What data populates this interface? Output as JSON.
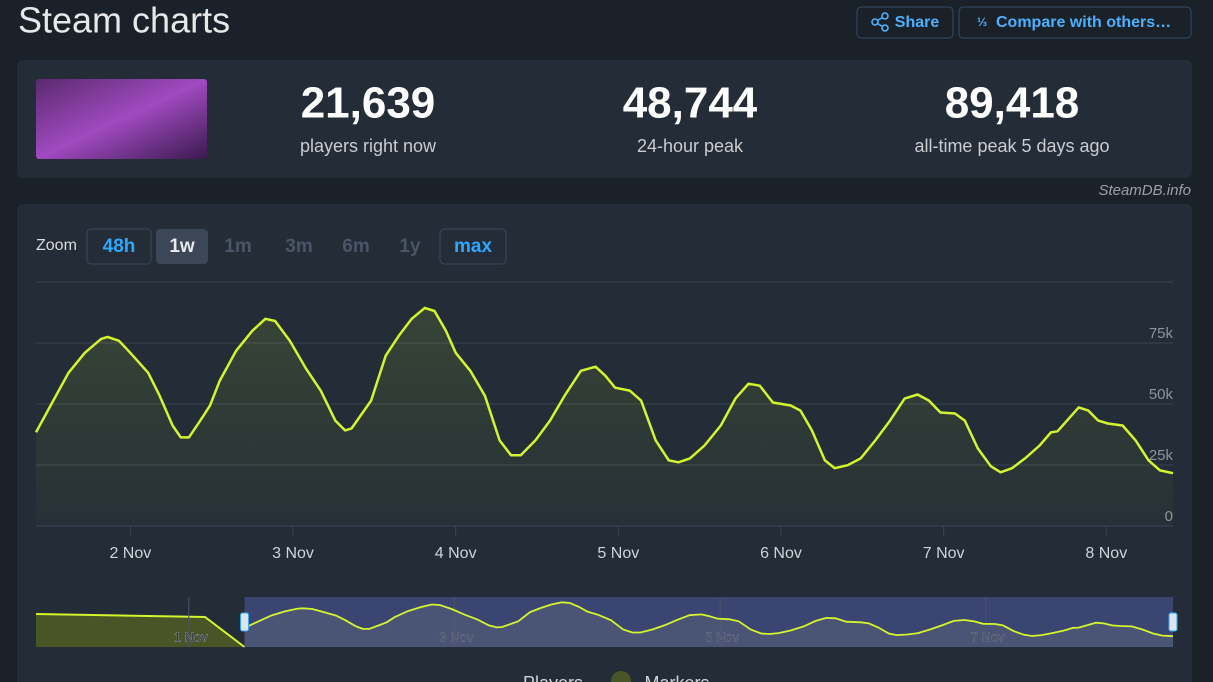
{
  "header": {
    "title": "Steam charts",
    "buttons": [
      "Share",
      "Compare with others…"
    ]
  },
  "stats": [
    {
      "value": "21,639",
      "label": "players right now"
    },
    {
      "value": "48,744",
      "label": "24-hour peak"
    },
    {
      "value": "89,418",
      "label": "all-time peak 5 days ago"
    }
  ],
  "source": "SteamDB.info",
  "zoom": {
    "label": "Zoom",
    "options": [
      {
        "label": "48h",
        "state": "outlined"
      },
      {
        "label": "1w",
        "state": "selected"
      },
      {
        "label": "1m",
        "state": "disabled"
      },
      {
        "label": "3m",
        "state": "disabled"
      },
      {
        "label": "6m",
        "state": "disabled"
      },
      {
        "label": "1y",
        "state": "disabled"
      },
      {
        "label": "max",
        "state": "outlined"
      }
    ]
  },
  "chart_data": {
    "type": "line",
    "x": [
      1.42,
      1.51,
      1.62,
      1.72,
      1.82,
      1.86,
      1.93,
      2.0,
      2.11,
      2.18,
      2.26,
      2.31,
      2.36,
      2.43,
      2.49,
      2.55,
      2.65,
      2.75,
      2.83,
      2.89,
      2.98,
      3.08,
      3.17,
      3.26,
      3.32,
      3.36,
      3.48,
      3.57,
      3.65,
      3.73,
      3.81,
      3.87,
      3.94,
      4.0,
      4.09,
      4.18,
      4.27,
      4.34,
      4.4,
      4.49,
      4.58,
      4.67,
      4.77,
      4.86,
      4.92,
      4.98,
      5.07,
      5.14,
      5.23,
      5.31,
      5.37,
      5.44,
      5.53,
      5.63,
      5.72,
      5.8,
      5.87,
      5.95,
      6.06,
      6.12,
      6.19,
      6.27,
      6.33,
      6.41,
      6.49,
      6.58,
      6.67,
      6.76,
      6.84,
      6.91,
      6.98,
      7.07,
      7.13,
      7.21,
      7.29,
      7.35,
      7.42,
      7.5,
      7.59,
      7.66,
      7.7,
      7.77,
      7.83,
      7.89,
      7.95,
      8.01,
      8.1,
      8.18,
      8.26,
      8.33,
      8.41
    ],
    "series": [
      {
        "name": "Players",
        "color": "#d4f52e",
        "values": [
          38400,
          49400,
          62800,
          71000,
          76700,
          77500,
          75900,
          71000,
          62800,
          53400,
          41200,
          36300,
          36300,
          43200,
          49400,
          59600,
          71800,
          80000,
          84900,
          84000,
          75900,
          64500,
          55500,
          43200,
          39200,
          40000,
          51400,
          69800,
          77900,
          84900,
          89400,
          88100,
          80000,
          71000,
          63600,
          53400,
          35100,
          29000,
          29000,
          35100,
          43200,
          53400,
          63600,
          65300,
          61600,
          56700,
          55500,
          51400,
          35100,
          26900,
          26100,
          27700,
          33000,
          41200,
          52200,
          58300,
          57500,
          50600,
          49400,
          47300,
          39200,
          26900,
          23700,
          24900,
          27700,
          35100,
          43200,
          52200,
          53900,
          51400,
          46500,
          46100,
          43200,
          31800,
          24500,
          22000,
          23700,
          27700,
          33000,
          38400,
          38800,
          44100,
          48600,
          47300,
          43200,
          42000,
          41200,
          35100,
          26900,
          22800,
          21639
        ]
      }
    ],
    "markers": {
      "name": "Markers",
      "color": "#4a5527"
    },
    "xlim": [
      1.42,
      8.41
    ],
    "xticks": [
      {
        "value": 2,
        "label": "2 Nov"
      },
      {
        "value": 3,
        "label": "3 Nov"
      },
      {
        "value": 4,
        "label": "4 Nov"
      },
      {
        "value": 5,
        "label": "5 Nov"
      },
      {
        "value": 6,
        "label": "6 Nov"
      },
      {
        "value": 7,
        "label": "7 Nov"
      },
      {
        "value": 8,
        "label": "8 Nov"
      }
    ],
    "ylim": [
      0,
      100000
    ],
    "yticks": [
      0,
      {
        "value": 25000,
        "label": "25k"
      },
      {
        "value": 50000,
        "label": "50k"
      },
      {
        "value": 75000,
        "label": "75k"
      }
    ],
    "grid": true,
    "navigator": {
      "xlim": [
        -0.15,
        8.41
      ],
      "xticks": [
        {
          "value": 1,
          "label": "1 Nov"
        },
        {
          "value": 3,
          "label": "3 Nov"
        },
        {
          "value": 5,
          "label": "5 Nov"
        },
        {
          "value": 7,
          "label": "7 Nov"
        }
      ]
    }
  }
}
